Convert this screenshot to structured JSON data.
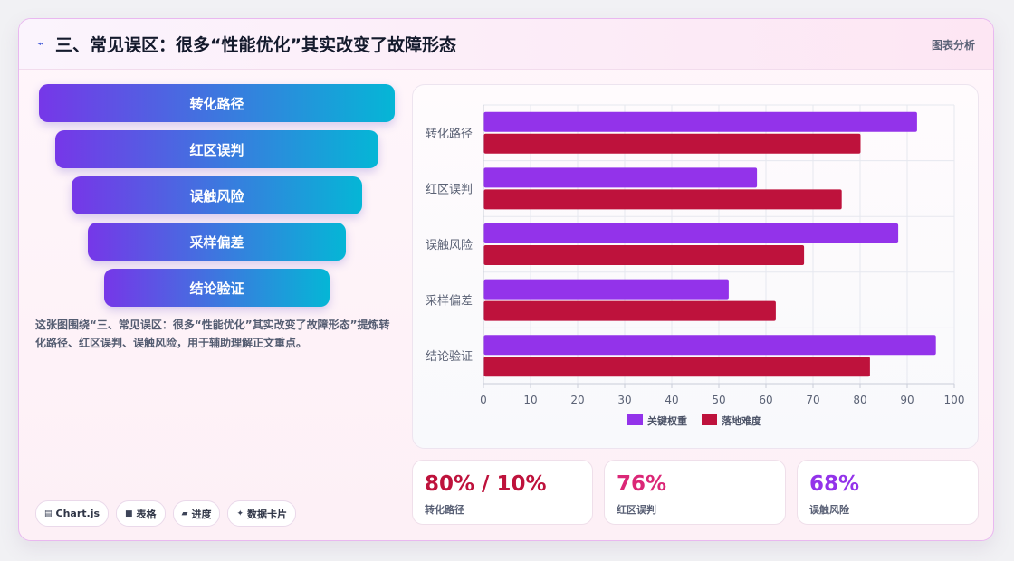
{
  "header": {
    "icon": "wave-icon",
    "title": "三、常见误区：很多“性能优化”其实改变了故障形态",
    "link": "图表分析"
  },
  "funnel": [
    "转化路径",
    "红区误判",
    "误触风险",
    "采样偏差",
    "结论验证"
  ],
  "description": "这张图围绕“三、常见误区：很多“性能优化”其实改变了故障形态”提炼转化路径、红区误判、误触风险，用于辅助理解正文重点。",
  "pills": [
    {
      "icon": "▤",
      "label": "Chart.js"
    },
    {
      "icon": "■",
      "label": "表格"
    },
    {
      "icon": "▰",
      "label": "进度"
    },
    {
      "icon": "✦",
      "label": "数据卡片"
    }
  ],
  "chart_data": {
    "type": "bar",
    "orientation": "horizontal",
    "categories": [
      "转化路径",
      "红区误判",
      "误触风险",
      "采样偏差",
      "结论验证"
    ],
    "series": [
      {
        "name": "关键权重",
        "color": "#9333ea",
        "values": [
          92,
          58,
          88,
          52,
          96
        ]
      },
      {
        "name": "落地难度",
        "color": "#be123c",
        "values": [
          80,
          76,
          68,
          62,
          82
        ]
      }
    ],
    "xlim": [
      0,
      100
    ],
    "xticks": [
      0,
      10,
      20,
      30,
      40,
      50,
      60,
      70,
      80,
      90,
      100
    ],
    "grid": true,
    "legend": "bottom"
  },
  "kpis": [
    {
      "value": "80% / 10%",
      "label": "转化路径",
      "color": "#be123c"
    },
    {
      "value": "76%",
      "label": "红区误判",
      "color": "#db2777"
    },
    {
      "value": "68%",
      "label": "误触风险",
      "color": "#9333ea"
    }
  ]
}
